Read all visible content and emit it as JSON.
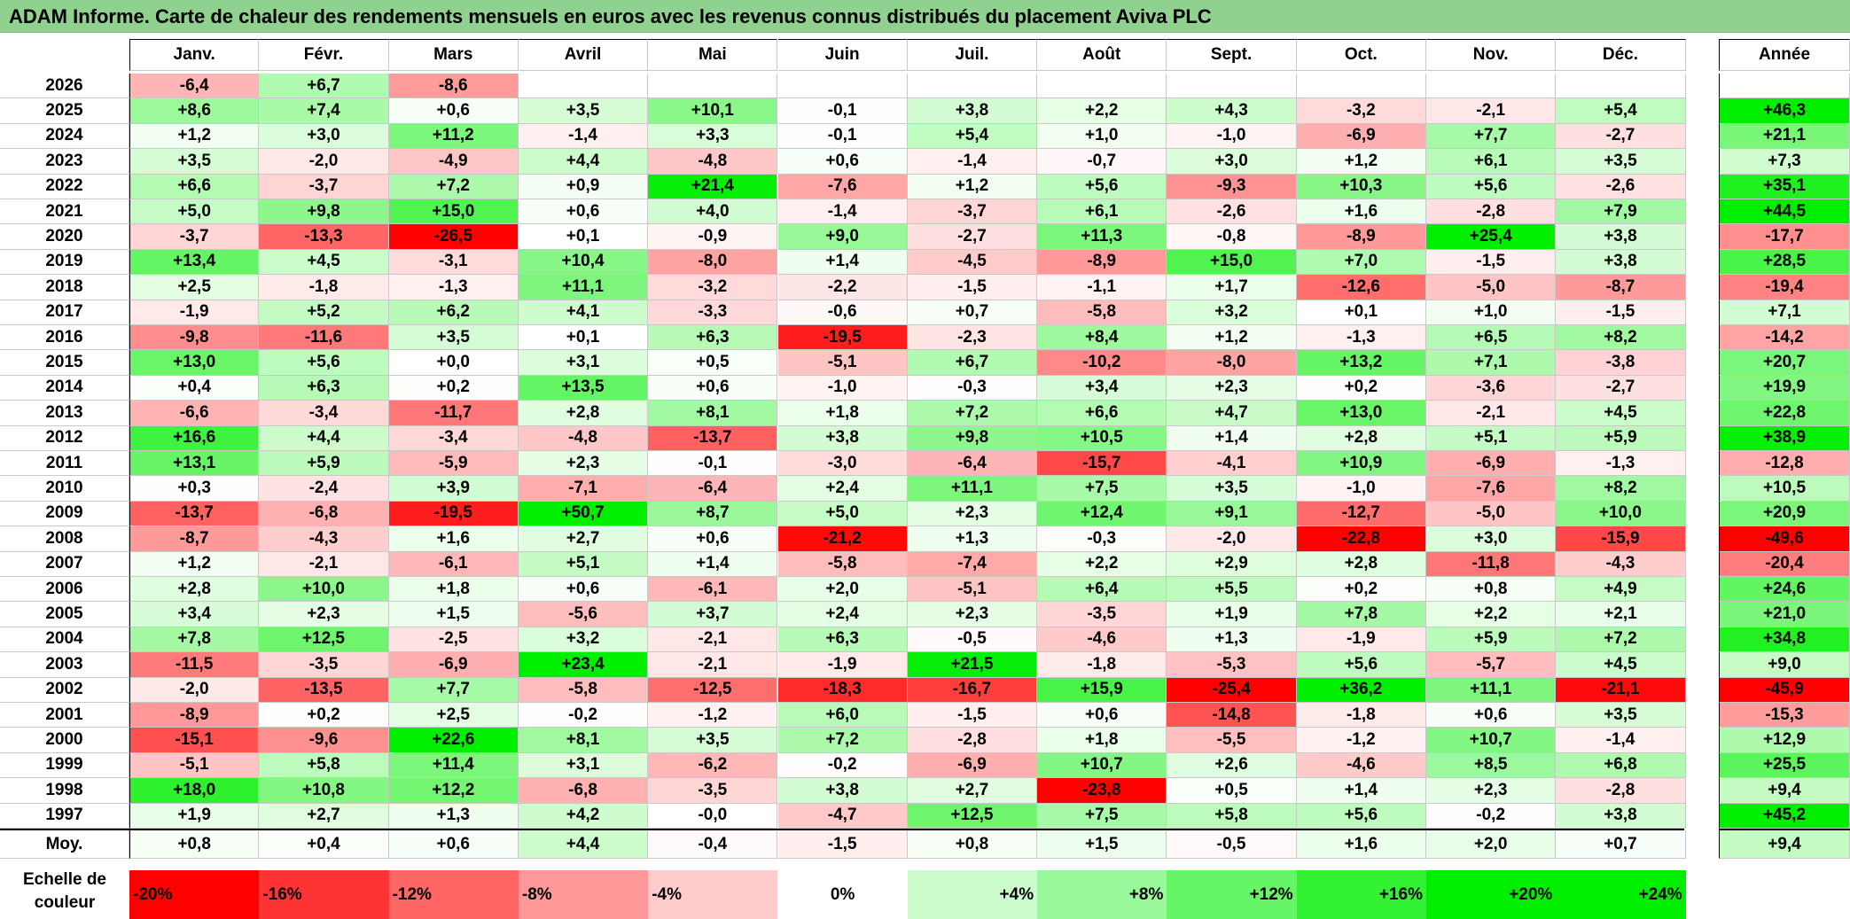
{
  "title": "ADAM Informe. Carte de chaleur des rendements mensuels en euros avec les revenus connus distribués du placement Aviva PLC",
  "chart_data": {
    "type": "heatmap",
    "months": [
      "Janv.",
      "Févr.",
      "Mars",
      "Avril",
      "Mai",
      "Juin",
      "Juil.",
      "Août",
      "Sept.",
      "Oct.",
      "Nov.",
      "Déc."
    ],
    "year_header": "Année",
    "avg_label": "Moy.",
    "rows": [
      {
        "year": "2026",
        "values": [
          "-6,4",
          "+6,7",
          "-8,6",
          "",
          "",
          "",
          "",
          "",
          "",
          "",
          "",
          ""
        ],
        "annual": ""
      },
      {
        "year": "2025",
        "values": [
          "+8,6",
          "+7,4",
          "+0,6",
          "+3,5",
          "+10,1",
          "-0,1",
          "+3,8",
          "+2,2",
          "+4,3",
          "-3,2",
          "-2,1",
          "+5,4"
        ],
        "annual": "+46,3"
      },
      {
        "year": "2024",
        "values": [
          "+1,2",
          "+3,0",
          "+11,2",
          "-1,4",
          "+3,3",
          "-0,1",
          "+5,4",
          "+1,0",
          "-1,0",
          "-6,9",
          "+7,7",
          "-2,7"
        ],
        "annual": "+21,1"
      },
      {
        "year": "2023",
        "values": [
          "+3,5",
          "-2,0",
          "-4,9",
          "+4,4",
          "-4,8",
          "+0,6",
          "-1,4",
          "-0,7",
          "+3,0",
          "+1,2",
          "+6,1",
          "+3,5"
        ],
        "annual": "+7,3"
      },
      {
        "year": "2022",
        "values": [
          "+6,6",
          "-3,7",
          "+7,2",
          "+0,9",
          "+21,4",
          "-7,6",
          "+1,2",
          "+5,6",
          "-9,3",
          "+10,3",
          "+5,6",
          "-2,6"
        ],
        "annual": "+35,1"
      },
      {
        "year": "2021",
        "values": [
          "+5,0",
          "+9,8",
          "+15,0",
          "+0,6",
          "+4,0",
          "-1,4",
          "-3,7",
          "+6,1",
          "-2,6",
          "+1,6",
          "-2,8",
          "+7,9"
        ],
        "annual": "+44,5"
      },
      {
        "year": "2020",
        "values": [
          "-3,7",
          "-13,3",
          "-26,5",
          "+0,1",
          "-0,9",
          "+9,0",
          "-2,7",
          "+11,3",
          "-0,8",
          "-8,9",
          "+25,4",
          "+3,8"
        ],
        "annual": "-17,7"
      },
      {
        "year": "2019",
        "values": [
          "+13,4",
          "+4,5",
          "-3,1",
          "+10,4",
          "-8,0",
          "+1,4",
          "-4,5",
          "-8,9",
          "+15,0",
          "+7,0",
          "-1,5",
          "+3,8"
        ],
        "annual": "+28,5"
      },
      {
        "year": "2018",
        "values": [
          "+2,5",
          "-1,8",
          "-1,3",
          "+11,1",
          "-3,2",
          "-2,2",
          "-1,5",
          "-1,1",
          "+1,7",
          "-12,6",
          "-5,0",
          "-8,7"
        ],
        "annual": "-19,4"
      },
      {
        "year": "2017",
        "values": [
          "-1,9",
          "+5,2",
          "+6,2",
          "+4,1",
          "-3,3",
          "-0,6",
          "+0,7",
          "-5,8",
          "+3,2",
          "+0,1",
          "+1,0",
          "-1,5"
        ],
        "annual": "+7,1"
      },
      {
        "year": "2016",
        "values": [
          "-9,8",
          "-11,6",
          "+3,5",
          "+0,1",
          "+6,3",
          "-19,5",
          "-2,3",
          "+8,4",
          "+1,2",
          "-1,3",
          "+6,5",
          "+8,2"
        ],
        "annual": "-14,2"
      },
      {
        "year": "2015",
        "values": [
          "+13,0",
          "+5,6",
          "+0,0",
          "+3,1",
          "+0,5",
          "-5,1",
          "+6,7",
          "-10,2",
          "-8,0",
          "+13,2",
          "+7,1",
          "-3,8"
        ],
        "annual": "+20,7"
      },
      {
        "year": "2014",
        "values": [
          "+0,4",
          "+6,3",
          "+0,2",
          "+13,5",
          "+0,6",
          "-1,0",
          "-0,3",
          "+3,4",
          "+2,3",
          "+0,2",
          "-3,6",
          "-2,7"
        ],
        "annual": "+19,9"
      },
      {
        "year": "2013",
        "values": [
          "-6,6",
          "-3,4",
          "-11,7",
          "+2,8",
          "+8,1",
          "+1,8",
          "+7,2",
          "+6,6",
          "+4,7",
          "+13,0",
          "-2,1",
          "+4,5"
        ],
        "annual": "+22,8"
      },
      {
        "year": "2012",
        "values": [
          "+16,6",
          "+4,4",
          "-3,4",
          "-4,8",
          "-13,7",
          "+3,8",
          "+9,8",
          "+10,5",
          "+1,4",
          "+2,8",
          "+5,1",
          "+5,9"
        ],
        "annual": "+38,9"
      },
      {
        "year": "2011",
        "values": [
          "+13,1",
          "+5,9",
          "-5,9",
          "+2,3",
          "-0,1",
          "-3,0",
          "-6,4",
          "-15,7",
          "-4,1",
          "+10,9",
          "-6,9",
          "-1,3"
        ],
        "annual": "-12,8"
      },
      {
        "year": "2010",
        "values": [
          "+0,3",
          "-2,4",
          "+3,9",
          "-7,1",
          "-6,4",
          "+2,4",
          "+11,1",
          "+7,5",
          "+3,5",
          "-1,0",
          "-7,6",
          "+8,2"
        ],
        "annual": "+10,5"
      },
      {
        "year": "2009",
        "values": [
          "-13,7",
          "-6,8",
          "-19,5",
          "+50,7",
          "+8,7",
          "+5,0",
          "+2,3",
          "+12,4",
          "+9,1",
          "-12,7",
          "-5,0",
          "+10,0"
        ],
        "annual": "+20,9"
      },
      {
        "year": "2008",
        "values": [
          "-8,7",
          "-4,3",
          "+1,6",
          "+2,7",
          "+0,6",
          "-21,2",
          "+1,3",
          "-0,3",
          "-2,0",
          "-22,8",
          "+3,0",
          "-15,9"
        ],
        "annual": "-49,6"
      },
      {
        "year": "2007",
        "values": [
          "+1,2",
          "-2,1",
          "-6,1",
          "+5,1",
          "+1,4",
          "-5,8",
          "-7,4",
          "+2,2",
          "+2,9",
          "+2,8",
          "-11,8",
          "-4,3"
        ],
        "annual": "-20,4"
      },
      {
        "year": "2006",
        "values": [
          "+2,8",
          "+10,0",
          "+1,8",
          "+0,6",
          "-6,1",
          "+2,0",
          "-5,1",
          "+6,4",
          "+5,5",
          "+0,2",
          "+0,8",
          "+4,9"
        ],
        "annual": "+24,6"
      },
      {
        "year": "2005",
        "values": [
          "+3,4",
          "+2,3",
          "+1,5",
          "-5,6",
          "+3,7",
          "+2,4",
          "+2,3",
          "-3,5",
          "+1,9",
          "+7,8",
          "+2,2",
          "+2,1"
        ],
        "annual": "+21,0"
      },
      {
        "year": "2004",
        "values": [
          "+7,8",
          "+12,5",
          "-2,5",
          "+3,2",
          "-2,1",
          "+6,3",
          "-0,5",
          "-4,6",
          "+1,3",
          "-1,9",
          "+5,9",
          "+7,2"
        ],
        "annual": "+34,8"
      },
      {
        "year": "2003",
        "values": [
          "-11,5",
          "-3,5",
          "-6,9",
          "+23,4",
          "-2,1",
          "-1,9",
          "+21,5",
          "-1,8",
          "-5,3",
          "+5,6",
          "-5,7",
          "+4,5"
        ],
        "annual": "+9,0"
      },
      {
        "year": "2002",
        "values": [
          "-2,0",
          "-13,5",
          "+7,7",
          "-5,8",
          "-12,5",
          "-18,3",
          "-16,7",
          "+15,9",
          "-25,4",
          "+36,2",
          "+11,1",
          "-21,1"
        ],
        "annual": "-45,9"
      },
      {
        "year": "2001",
        "values": [
          "-8,9",
          "+0,2",
          "+2,5",
          "-0,2",
          "-1,2",
          "+6,0",
          "-1,5",
          "+0,6",
          "-14,8",
          "-1,8",
          "+0,6",
          "+3,5"
        ],
        "annual": "-15,3"
      },
      {
        "year": "2000",
        "values": [
          "-15,1",
          "-9,6",
          "+22,6",
          "+8,1",
          "+3,5",
          "+7,2",
          "-2,8",
          "+1,8",
          "-5,5",
          "-1,2",
          "+10,7",
          "-1,4"
        ],
        "annual": "+12,9"
      },
      {
        "year": "1999",
        "values": [
          "-5,1",
          "+5,8",
          "+11,4",
          "+3,1",
          "-6,2",
          "-0,2",
          "-6,9",
          "+10,7",
          "+2,6",
          "-4,6",
          "+8,5",
          "+6,8"
        ],
        "annual": "+25,5"
      },
      {
        "year": "1998",
        "values": [
          "+18,0",
          "+10,8",
          "+12,2",
          "-6,8",
          "-3,5",
          "+3,8",
          "+2,7",
          "-23,8",
          "+0,5",
          "+1,4",
          "+2,3",
          "-2,8"
        ],
        "annual": "+9,4"
      },
      {
        "year": "1997",
        "values": [
          "+1,9",
          "+2,7",
          "+1,3",
          "+4,2",
          "-0,0",
          "-4,7",
          "+12,5",
          "+7,5",
          "+5,8",
          "+5,6",
          "-0,2",
          "+3,8"
        ],
        "annual": "+45,2"
      }
    ],
    "averages": {
      "values": [
        "+0,8",
        "+0,4",
        "+0,6",
        "+4,4",
        "-0,4",
        "-1,5",
        "+0,8",
        "+1,5",
        "-0,5",
        "+1,6",
        "+2,0",
        "+0,7"
      ],
      "annual": "+9,4"
    },
    "color_scale": {
      "label": "Echelle de\ncouleur",
      "stops": [
        "-20%",
        "-16%",
        "-12%",
        "-8%",
        "-4%",
        "0%",
        "+4%",
        "+8%",
        "+12%",
        "+16%",
        "+20%",
        "+24%"
      ],
      "stop_values": [
        -20,
        -16,
        -12,
        -8,
        -4,
        0,
        4,
        8,
        12,
        16,
        20,
        24
      ],
      "negative_color": "#ff0000",
      "positive_color": "#00ee00",
      "neutral_color": "#ffffff"
    }
  }
}
